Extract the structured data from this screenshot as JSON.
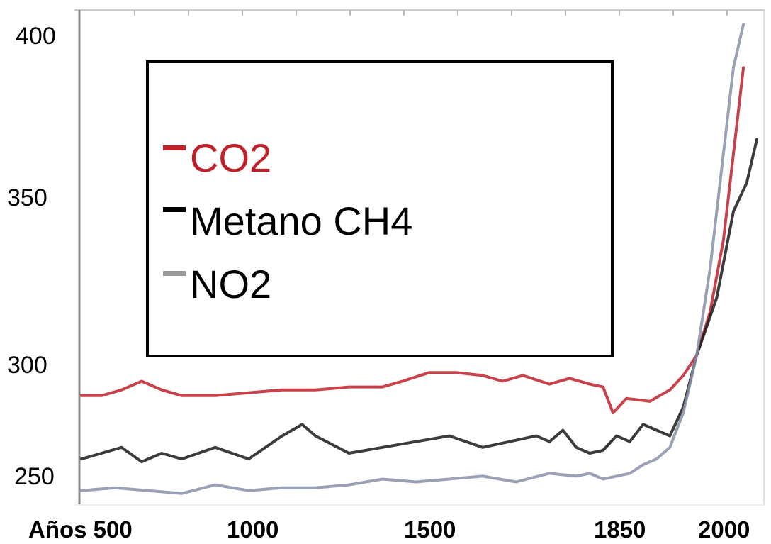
{
  "chart_data": {
    "type": "line",
    "y_ticks": [
      "400",
      "350",
      "300",
      "250"
    ],
    "x_ticks": [
      "Años 500",
      "1000",
      "1500",
      "1850",
      "2000"
    ],
    "ylim": [
      238,
      410
    ],
    "grid": false,
    "legend_placement": "top-left",
    "series": [
      {
        "name": "CO2",
        "color": "#c0202a",
        "points": [
          [
            0,
            276
          ],
          [
            30,
            276
          ],
          [
            60,
            278
          ],
          [
            90,
            281
          ],
          [
            120,
            278
          ],
          [
            150,
            276
          ],
          [
            200,
            276
          ],
          [
            250,
            277
          ],
          [
            300,
            278
          ],
          [
            350,
            278
          ],
          [
            400,
            279
          ],
          [
            450,
            279
          ],
          [
            480,
            281
          ],
          [
            520,
            284
          ],
          [
            560,
            284
          ],
          [
            600,
            283
          ],
          [
            630,
            281
          ],
          [
            660,
            283
          ],
          [
            700,
            280
          ],
          [
            730,
            282
          ],
          [
            760,
            280
          ],
          [
            780,
            279
          ],
          [
            795,
            270
          ],
          [
            815,
            275
          ],
          [
            850,
            274
          ],
          [
            880,
            278
          ],
          [
            900,
            283
          ],
          [
            920,
            290
          ],
          [
            940,
            305
          ],
          [
            960,
            330
          ],
          [
            975,
            360
          ],
          [
            990,
            390
          ]
        ]
      },
      {
        "name": "Metano CH4",
        "color": "#1a1a1a",
        "points": [
          [
            0,
            254
          ],
          [
            30,
            256
          ],
          [
            60,
            258
          ],
          [
            90,
            253
          ],
          [
            120,
            256
          ],
          [
            150,
            254
          ],
          [
            200,
            258
          ],
          [
            250,
            254
          ],
          [
            300,
            262
          ],
          [
            330,
            266
          ],
          [
            350,
            262
          ],
          [
            400,
            256
          ],
          [
            450,
            258
          ],
          [
            500,
            260
          ],
          [
            550,
            262
          ],
          [
            600,
            258
          ],
          [
            640,
            260
          ],
          [
            680,
            262
          ],
          [
            700,
            260
          ],
          [
            720,
            264
          ],
          [
            740,
            258
          ],
          [
            760,
            256
          ],
          [
            780,
            257
          ],
          [
            800,
            262
          ],
          [
            820,
            260
          ],
          [
            840,
            266
          ],
          [
            860,
            264
          ],
          [
            880,
            262
          ],
          [
            900,
            272
          ],
          [
            920,
            290
          ],
          [
            950,
            310
          ],
          [
            975,
            340
          ],
          [
            995,
            350
          ],
          [
            1010,
            365
          ]
        ]
      },
      {
        "name": "NO2",
        "color": "#8a90a8",
        "points": [
          [
            0,
            243
          ],
          [
            50,
            244
          ],
          [
            100,
            243
          ],
          [
            150,
            242
          ],
          [
            200,
            245
          ],
          [
            250,
            243
          ],
          [
            300,
            244
          ],
          [
            350,
            244
          ],
          [
            400,
            245
          ],
          [
            450,
            247
          ],
          [
            500,
            246
          ],
          [
            550,
            247
          ],
          [
            600,
            248
          ],
          [
            650,
            246
          ],
          [
            700,
            249
          ],
          [
            740,
            248
          ],
          [
            760,
            249
          ],
          [
            780,
            247
          ],
          [
            800,
            248
          ],
          [
            820,
            249
          ],
          [
            840,
            252
          ],
          [
            860,
            254
          ],
          [
            880,
            258
          ],
          [
            900,
            270
          ],
          [
            920,
            290
          ],
          [
            940,
            320
          ],
          [
            960,
            360
          ],
          [
            975,
            390
          ],
          [
            990,
            405
          ]
        ]
      }
    ]
  }
}
